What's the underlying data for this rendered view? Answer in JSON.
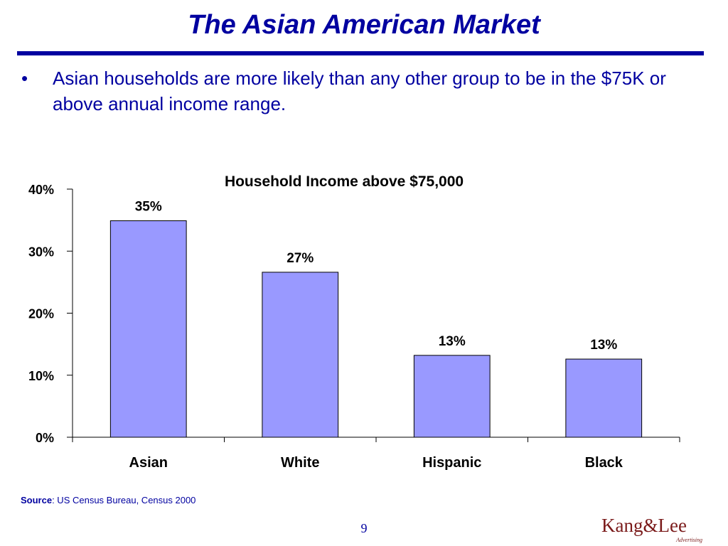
{
  "slide": {
    "title": "The Asian American Market",
    "bullet": "Asian households are more likely than any other group to be in the $75K or above annual income range.",
    "bullet_symbol": "•",
    "source_label": "Source",
    "source_text": ": US Census Bureau, Census  2000",
    "page_number": "9",
    "logo_main": "Kang&Lee",
    "logo_sub": "Advertising"
  },
  "colors": {
    "title": "#0000a0",
    "bar_fill": "#9999ff",
    "bar_stroke": "#000000"
  },
  "chart_data": {
    "type": "bar",
    "title": "Household Income above $75,000",
    "categories": [
      "Asian",
      "White",
      "Hispanic",
      "Black"
    ],
    "values": [
      35,
      27,
      13,
      13
    ],
    "data_labels": [
      "35%",
      "27%",
      "13%",
      "13%"
    ],
    "value_fractions": [
      0.349,
      0.266,
      0.132,
      0.126
    ],
    "ylim": [
      0,
      40
    ],
    "yticks": [
      0,
      10,
      20,
      30,
      40
    ],
    "ytick_labels": [
      "0%",
      "10%",
      "20%",
      "30%",
      "40%"
    ],
    "xlabel": "",
    "ylabel": "",
    "grid": false,
    "legend": "none"
  }
}
